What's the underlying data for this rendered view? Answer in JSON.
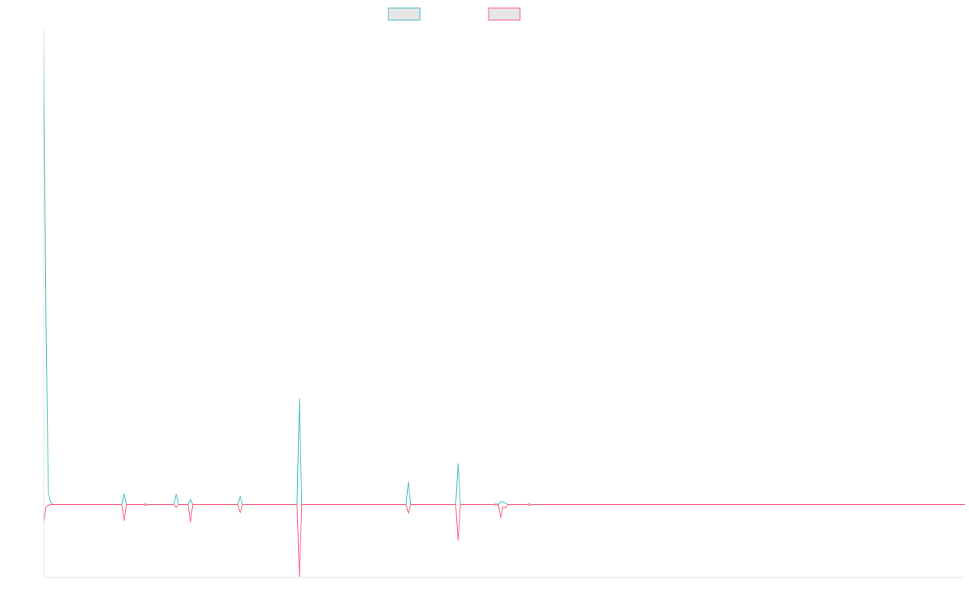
{
  "chart_data": {
    "type": "line",
    "title": "",
    "xlabel": "",
    "ylabel": "",
    "grid": false,
    "legend_placement": "top-center",
    "x_count": 390,
    "ylim": [
      -1.0,
      6.5
    ],
    "series": [
      {
        "color": "#4bc0c0",
        "fill": "#e6e6e6",
        "points": [
          [
            0,
            6.5
          ],
          [
            1,
            2.5
          ],
          [
            2,
            0.15
          ],
          [
            3,
            0.03
          ],
          [
            4,
            0.0
          ],
          [
            33,
            0.0
          ],
          [
            34,
            0.15
          ],
          [
            35,
            0.0
          ],
          [
            42,
            0.0
          ],
          [
            43,
            0.01
          ],
          [
            44,
            0.0
          ],
          [
            55,
            0.0
          ],
          [
            56,
            0.14
          ],
          [
            57,
            0.0
          ],
          [
            61,
            0.0
          ],
          [
            62,
            0.07
          ],
          [
            63,
            0.0
          ],
          [
            82,
            0.0
          ],
          [
            83,
            0.11
          ],
          [
            84,
            0.0
          ],
          [
            107,
            0.0
          ],
          [
            108,
            1.45
          ],
          [
            109,
            0.0
          ],
          [
            153,
            0.0
          ],
          [
            154,
            0.31
          ],
          [
            155,
            0.0
          ],
          [
            174,
            0.0
          ],
          [
            175,
            0.56
          ],
          [
            176,
            0.0
          ],
          [
            190,
            0.0
          ],
          [
            191,
            0.01
          ],
          [
            192,
            0.0
          ],
          [
            193,
            0.04
          ],
          [
            194,
            0.04
          ],
          [
            195,
            0.02
          ],
          [
            196,
            0.0
          ],
          [
            204,
            0.0
          ],
          [
            205,
            0.01
          ],
          [
            206,
            0.0
          ],
          [
            389,
            0.0
          ]
        ]
      },
      {
        "color": "#ff6384",
        "fill": "#e6e6e6",
        "points": [
          [
            0,
            -0.25
          ],
          [
            1,
            -0.03
          ],
          [
            2,
            -0.01
          ],
          [
            3,
            0.0
          ],
          [
            33,
            0.0
          ],
          [
            34,
            -0.22
          ],
          [
            35,
            0.0
          ],
          [
            42,
            0.0
          ],
          [
            43,
            -0.01
          ],
          [
            44,
            0.0
          ],
          [
            55,
            0.0
          ],
          [
            56,
            -0.04
          ],
          [
            57,
            0.0
          ],
          [
            61,
            0.0
          ],
          [
            62,
            -0.24
          ],
          [
            63,
            0.0
          ],
          [
            82,
            0.0
          ],
          [
            83,
            -0.11
          ],
          [
            84,
            0.0
          ],
          [
            107,
            0.0
          ],
          [
            108,
            -1.0
          ],
          [
            109,
            0.0
          ],
          [
            153,
            0.0
          ],
          [
            154,
            -0.12
          ],
          [
            155,
            0.0
          ],
          [
            174,
            0.0
          ],
          [
            175,
            -0.49
          ],
          [
            176,
            0.0
          ],
          [
            190,
            0.0
          ],
          [
            191,
            -0.01
          ],
          [
            192,
            0.0
          ],
          [
            193,
            -0.18
          ],
          [
            194,
            -0.03
          ],
          [
            195,
            -0.05
          ],
          [
            196,
            0.0
          ],
          [
            204,
            0.0
          ],
          [
            205,
            -0.01
          ],
          [
            206,
            0.0
          ],
          [
            389,
            0.0
          ]
        ]
      }
    ]
  }
}
